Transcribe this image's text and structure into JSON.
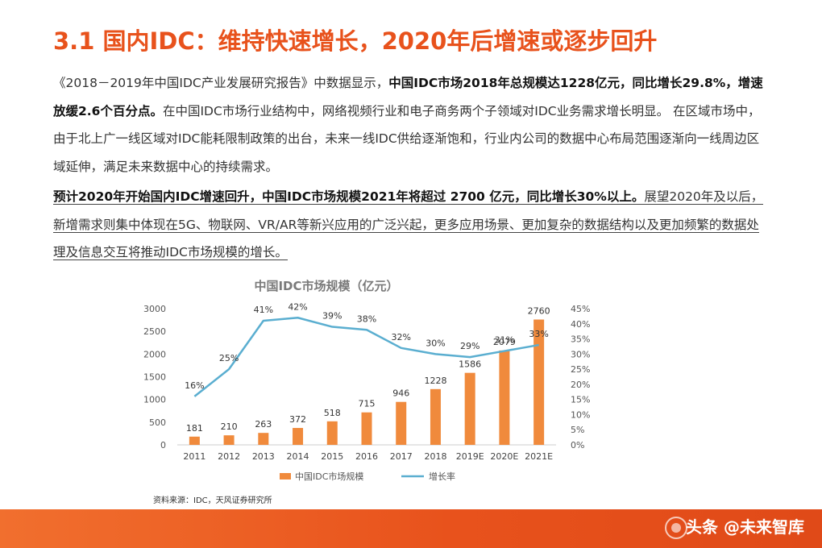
{
  "title": "3.1 国内IDC：维持快速增长，2020年后增速或逐步回升",
  "para1": {
    "normal1": "《2018－2019年中国IDC产业发展研究报告》中数据显示，",
    "bold1": "中国IDC市场2018年总规模达1228亿元，同比增长29.8%，增速放缓2.6个百分点。",
    "normal2": "在中国IDC市场行业结构中，网络视频行业和电子商务两个子领域对IDC业务需求增长明显。 在区域市场中，由于北上广一线区域对IDC能耗限制政策的出台，未来一线IDC供给逐渐饱和，行业内公司的数据中心布局范围逐渐向一线周边区域延伸，满足未来数据中心的持续需求。"
  },
  "para2": {
    "bold1": "预计2020年开始国内IDC增速回升，中国IDC市场规模2021年将超过 2700 亿元，同比增长30%以上。",
    "normal1": "展望2020年及以后，新增需求则集中体现在5G、物联网、VR/AR等新兴应用的广泛兴起，更多应用场景、更加复杂的数据结构以及更加频繁的数据处理及信息交互将推动IDC市场规模的增长。"
  },
  "source": "资料来源：IDC，天风证券研究所",
  "watermark": "头条 @未来智库",
  "chart_data": {
    "type": "bar",
    "title": "中国IDC市场规模（亿元）",
    "categories": [
      "2011",
      "2012",
      "2013",
      "2014",
      "2015",
      "2016",
      "2017",
      "2018",
      "2019E",
      "2020E",
      "2021E"
    ],
    "series": [
      {
        "name": "中国IDC市场规模",
        "type": "bar",
        "axis": "left",
        "color": "#f08a3c",
        "values": [
          181,
          210,
          263,
          372,
          518,
          715,
          946,
          1228,
          1586,
          2079,
          2760
        ]
      },
      {
        "name": "增长率",
        "type": "line",
        "axis": "right",
        "color": "#5aaed0",
        "values": [
          16,
          25,
          41,
          42,
          39,
          38,
          32,
          30,
          29,
          31,
          33
        ]
      }
    ],
    "rate_labels": [
      "16%",
      "25%",
      "41%",
      "42%",
      "39%",
      "38%",
      "32%",
      "30%",
      "29%",
      "31%",
      "33%"
    ],
    "y_left": {
      "min": 0,
      "max": 3000,
      "ticks": [
        "0",
        "500",
        "1000",
        "1500",
        "2000",
        "2500",
        "3000"
      ]
    },
    "y_right": {
      "min": 0,
      "max": 45,
      "ticks": [
        "0%",
        "5%",
        "10%",
        "15%",
        "20%",
        "25%",
        "30%",
        "35%",
        "40%",
        "45%"
      ]
    },
    "legend": "bottom",
    "grid": false
  }
}
